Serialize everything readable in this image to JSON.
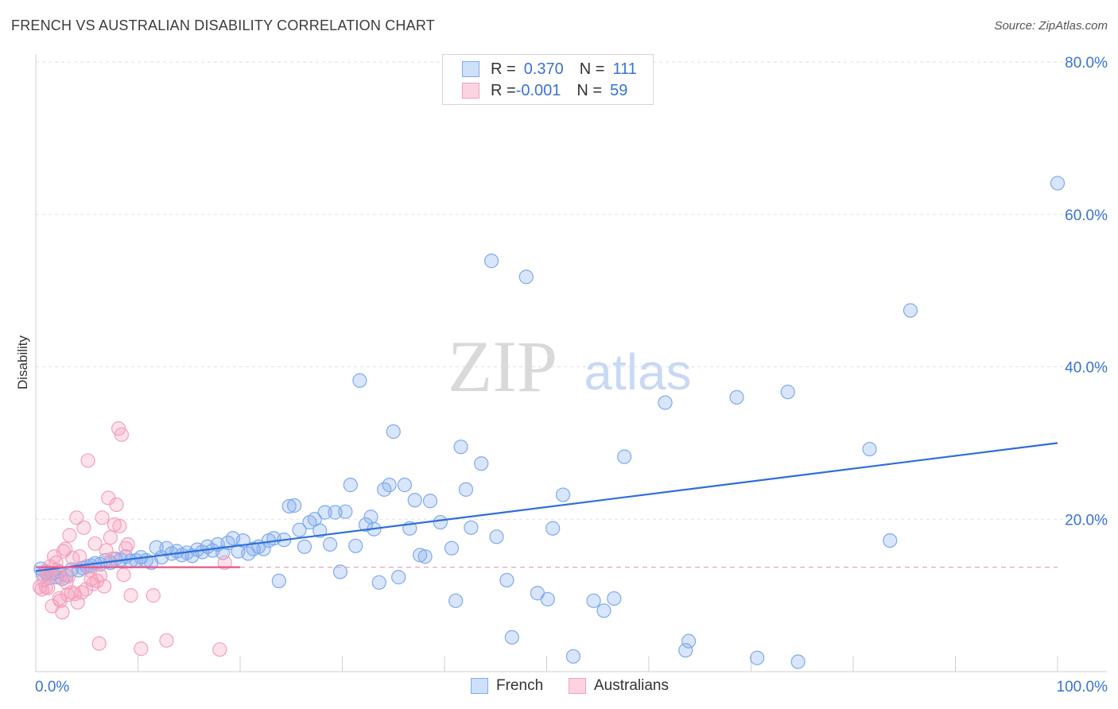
{
  "title": "FRENCH VS AUSTRALIAN DISABILITY CORRELATION CHART",
  "source": "Source: ZipAtlas.com",
  "watermark": {
    "zip": "ZIP",
    "atlas": "atlas"
  },
  "legend": {
    "rows": [
      {
        "r_label": "R = ",
        "r_value": "0.370",
        "n_label": "N = ",
        "n_value": "111",
        "color": "#7eaaf0"
      },
      {
        "r_label": "R = ",
        "r_value": "-0.001",
        "n_label": "N = ",
        "n_value": "59",
        "color": "#f4a0bc"
      }
    ]
  },
  "bottom_legend": [
    {
      "label": "French",
      "color": "#7eaaf0"
    },
    {
      "label": "Australians",
      "color": "#f4a0bc"
    }
  ],
  "chart_data": {
    "type": "scatter",
    "title": "FRENCH VS AUSTRALIAN DISABILITY CORRELATION CHART",
    "xlabel": "",
    "ylabel": "Disability",
    "xlim": [
      0,
      100
    ],
    "ylim": [
      0,
      80
    ],
    "x_tick_labels": [
      "0.0%",
      "100.0%"
    ],
    "y_ticks": [
      20,
      40,
      60,
      80
    ],
    "y_tick_labels": [
      "20.0%",
      "40.0%",
      "60.0%",
      "80.0%"
    ],
    "grid": true,
    "legend_placement": "top-center",
    "series": [
      {
        "name": "French",
        "color": "#7eaaf0",
        "line_color": "#2d6fd6",
        "trend": {
          "x": [
            0,
            100
          ],
          "y": [
            13.2,
            30.0
          ]
        },
        "points": [
          [
            0.5,
            13.5
          ],
          [
            0.7,
            12.8
          ],
          [
            1.0,
            13.0
          ],
          [
            1.3,
            12.3
          ],
          [
            1.6,
            12.9
          ],
          [
            2.0,
            12.4
          ],
          [
            2.3,
            13.1
          ],
          [
            2.6,
            12.2
          ],
          [
            3.0,
            12.6
          ],
          [
            3.5,
            13.4
          ],
          [
            4.2,
            13.3
          ],
          [
            4.6,
            13.6
          ],
          [
            5.0,
            13.8
          ],
          [
            5.4,
            13.9
          ],
          [
            5.8,
            14.2
          ],
          [
            6.3,
            14.1
          ],
          [
            6.8,
            14.6
          ],
          [
            7.3,
            14.3
          ],
          [
            7.8,
            14.8
          ],
          [
            8.3,
            14.7
          ],
          [
            8.8,
            15.1
          ],
          [
            9.3,
            14.5
          ],
          [
            9.8,
            14.6
          ],
          [
            10.3,
            15.0
          ],
          [
            10.8,
            14.6
          ],
          [
            11.3,
            14.3
          ],
          [
            11.8,
            16.3
          ],
          [
            12.3,
            15.0
          ],
          [
            12.8,
            16.2
          ],
          [
            13.3,
            15.5
          ],
          [
            13.8,
            15.8
          ],
          [
            14.3,
            15.3
          ],
          [
            14.8,
            15.6
          ],
          [
            15.3,
            15.2
          ],
          [
            15.8,
            16.0
          ],
          [
            16.3,
            15.7
          ],
          [
            16.8,
            16.4
          ],
          [
            17.3,
            15.9
          ],
          [
            17.8,
            16.7
          ],
          [
            18.3,
            15.6
          ],
          [
            18.8,
            16.9
          ],
          [
            19.3,
            17.5
          ],
          [
            19.8,
            15.8
          ],
          [
            20.3,
            17.2
          ],
          [
            20.8,
            15.5
          ],
          [
            21.3,
            16.1
          ],
          [
            21.8,
            16.4
          ],
          [
            22.3,
            16.1
          ],
          [
            22.8,
            17.2
          ],
          [
            23.3,
            17.5
          ],
          [
            23.8,
            11.9
          ],
          [
            24.3,
            17.3
          ],
          [
            24.8,
            21.7
          ],
          [
            25.3,
            21.8
          ],
          [
            25.8,
            18.6
          ],
          [
            26.3,
            16.4
          ],
          [
            26.8,
            19.6
          ],
          [
            27.3,
            20.0
          ],
          [
            27.8,
            18.5
          ],
          [
            28.3,
            20.9
          ],
          [
            28.8,
            16.7
          ],
          [
            29.3,
            20.9
          ],
          [
            29.8,
            13.1
          ],
          [
            30.3,
            21.0
          ],
          [
            30.8,
            24.5
          ],
          [
            31.3,
            16.5
          ],
          [
            31.7,
            38.2
          ],
          [
            32.3,
            19.3
          ],
          [
            32.8,
            20.3
          ],
          [
            33.1,
            18.7
          ],
          [
            33.6,
            11.7
          ],
          [
            34.1,
            23.9
          ],
          [
            34.6,
            24.5
          ],
          [
            35.0,
            31.5
          ],
          [
            35.5,
            12.4
          ],
          [
            36.1,
            24.5
          ],
          [
            36.6,
            18.8
          ],
          [
            37.1,
            22.5
          ],
          [
            37.6,
            15.3
          ],
          [
            38.1,
            15.1
          ],
          [
            38.6,
            22.4
          ],
          [
            39.6,
            19.6
          ],
          [
            40.7,
            16.2
          ],
          [
            41.1,
            9.3
          ],
          [
            41.6,
            29.5
          ],
          [
            42.1,
            23.9
          ],
          [
            42.6,
            18.9
          ],
          [
            43.6,
            27.3
          ],
          [
            44.6,
            53.9
          ],
          [
            45.1,
            17.7
          ],
          [
            46.1,
            12.0
          ],
          [
            46.6,
            4.5
          ],
          [
            48.0,
            51.8
          ],
          [
            49.1,
            10.3
          ],
          [
            50.1,
            9.5
          ],
          [
            50.6,
            18.8
          ],
          [
            51.6,
            23.2
          ],
          [
            52.6,
            2.0
          ],
          [
            54.6,
            9.3
          ],
          [
            55.6,
            8.0
          ],
          [
            56.6,
            9.6
          ],
          [
            57.6,
            28.2
          ],
          [
            61.6,
            35.3
          ],
          [
            63.6,
            2.8
          ],
          [
            63.9,
            4.0
          ],
          [
            68.6,
            36.0
          ],
          [
            70.6,
            1.8
          ],
          [
            73.6,
            36.7
          ],
          [
            74.6,
            1.3
          ],
          [
            81.6,
            29.2
          ],
          [
            83.6,
            17.2
          ],
          [
            85.6,
            47.4
          ],
          [
            100.0,
            64.1
          ]
        ]
      },
      {
        "name": "Australians",
        "color": "#f4a0bc",
        "line_color": "#e8558a",
        "trend": {
          "x": [
            0,
            20
          ],
          "y": [
            13.7,
            13.7
          ]
        },
        "dashed_extension": {
          "x": [
            20,
            100
          ],
          "y": [
            13.7,
            13.7
          ]
        },
        "points": [
          [
            0.4,
            11.1
          ],
          [
            0.6,
            10.8
          ],
          [
            0.8,
            12.0
          ],
          [
            1.0,
            13.2
          ],
          [
            1.2,
            12.9
          ],
          [
            1.4,
            13.8
          ],
          [
            1.2,
            11.0
          ],
          [
            1.6,
            8.6
          ],
          [
            1.8,
            15.1
          ],
          [
            2.0,
            14.3
          ],
          [
            2.1,
            13.3
          ],
          [
            2.3,
            9.6
          ],
          [
            2.4,
            12.4
          ],
          [
            2.6,
            7.8
          ],
          [
            2.7,
            15.8
          ],
          [
            2.9,
            16.1
          ],
          [
            3.0,
            11.7
          ],
          [
            3.2,
            12.5
          ],
          [
            3.3,
            17.9
          ],
          [
            3.5,
            10.4
          ],
          [
            3.6,
            14.9
          ],
          [
            3.8,
            10.2
          ],
          [
            4.0,
            20.2
          ],
          [
            4.1,
            9.1
          ],
          [
            4.3,
            15.1
          ],
          [
            4.5,
            10.4
          ],
          [
            4.7,
            18.9
          ],
          [
            4.9,
            10.8
          ],
          [
            5.1,
            27.7
          ],
          [
            5.3,
            13.3
          ],
          [
            5.4,
            12.1
          ],
          [
            5.6,
            11.5
          ],
          [
            5.8,
            16.8
          ],
          [
            6.0,
            11.9
          ],
          [
            6.2,
            3.7
          ],
          [
            6.3,
            12.6
          ],
          [
            6.5,
            20.2
          ],
          [
            6.7,
            11.2
          ],
          [
            6.9,
            15.9
          ],
          [
            7.1,
            22.8
          ],
          [
            7.3,
            17.6
          ],
          [
            7.5,
            14.8
          ],
          [
            7.7,
            19.3
          ],
          [
            7.9,
            21.9
          ],
          [
            8.1,
            31.9
          ],
          [
            8.2,
            19.1
          ],
          [
            8.4,
            31.1
          ],
          [
            8.6,
            12.7
          ],
          [
            8.8,
            16.2
          ],
          [
            9.0,
            16.7
          ],
          [
            9.3,
            10.0
          ],
          [
            10.3,
            3.0
          ],
          [
            11.5,
            10.0
          ],
          [
            12.8,
            4.1
          ],
          [
            18.0,
            2.9
          ],
          [
            18.5,
            14.3
          ],
          [
            1.0,
            11.1
          ],
          [
            2.4,
            9.3
          ],
          [
            3.1,
            10.1
          ]
        ]
      }
    ]
  }
}
